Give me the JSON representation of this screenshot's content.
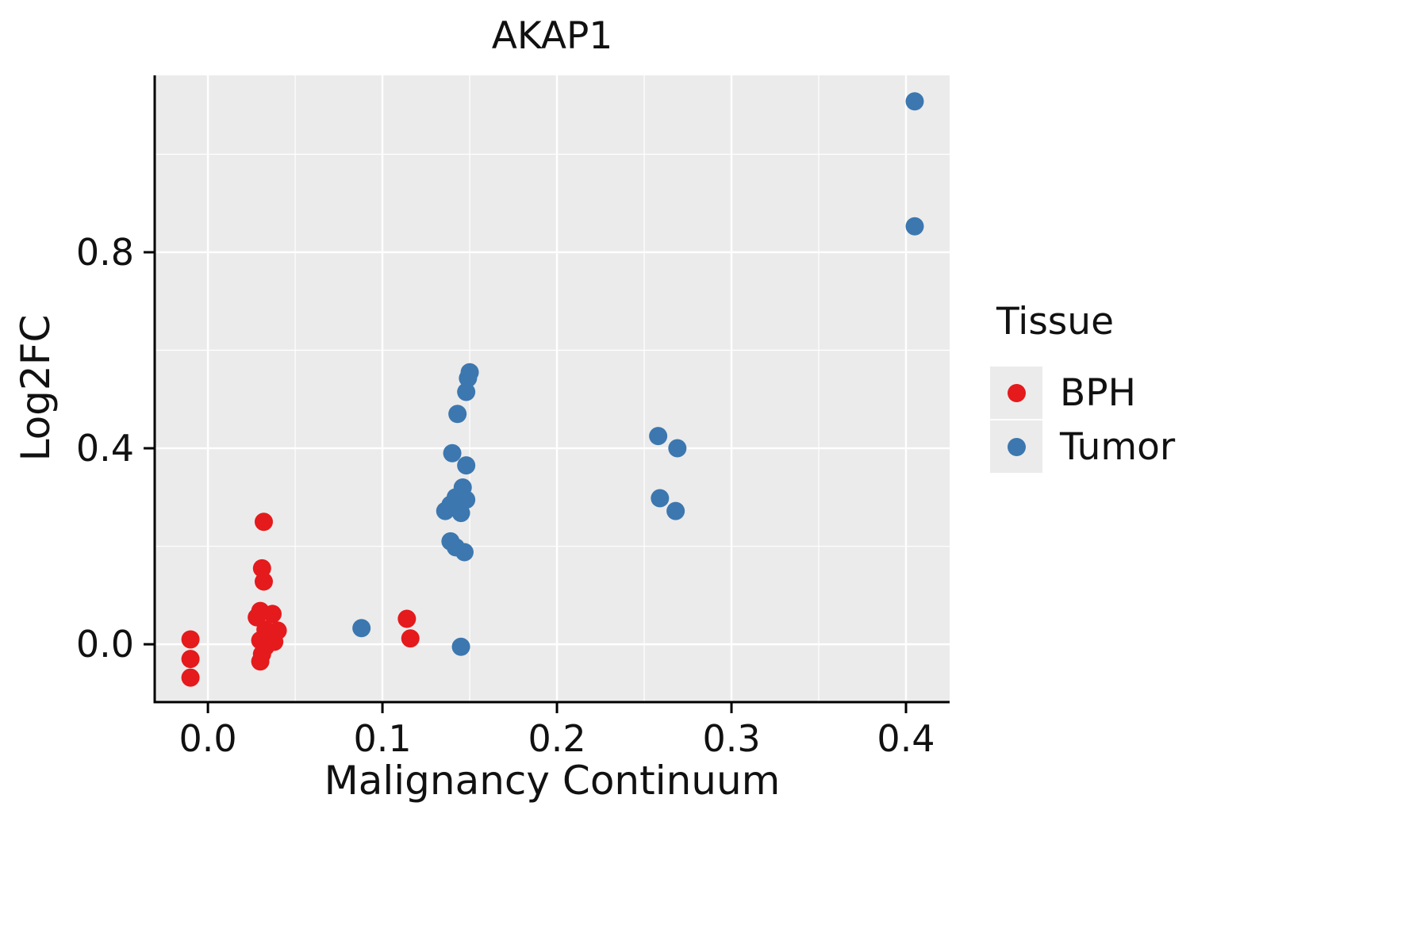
{
  "title": "AKAP1",
  "chart_data": {
    "type": "scatter",
    "title": "AKAP1",
    "xlabel": "Malignancy Continuum",
    "ylabel": "Log2FC",
    "xlim": [
      -0.0305,
      0.425
    ],
    "ylim": [
      -0.118,
      1.161
    ],
    "x_ticks": [
      0.0,
      0.1,
      0.2,
      0.3,
      0.4
    ],
    "y_ticks": [
      0.0,
      0.4,
      0.8
    ],
    "x_minor_ticks": [
      0.05,
      0.15,
      0.25,
      0.35
    ],
    "y_minor_ticks": [
      0.2,
      0.6,
      1.0
    ],
    "grid": "on",
    "panel_background": "#EBEBEB",
    "gridline_color": "#FFFFFF",
    "legend_title": "Tissue",
    "legend_position": "right",
    "series": [
      {
        "name": "BPH",
        "color": "#E41A1C",
        "points": [
          [
            -0.01,
            0.01
          ],
          [
            -0.01,
            -0.03
          ],
          [
            -0.01,
            -0.068
          ],
          [
            0.032,
            0.25
          ],
          [
            0.031,
            0.155
          ],
          [
            0.032,
            0.128
          ],
          [
            0.03,
            0.068
          ],
          [
            0.037,
            0.062
          ],
          [
            0.028,
            0.055
          ],
          [
            0.033,
            0.03
          ],
          [
            0.04,
            0.028
          ],
          [
            0.03,
            0.008
          ],
          [
            0.038,
            0.005
          ],
          [
            0.033,
            -0.005
          ],
          [
            0.031,
            -0.02
          ],
          [
            0.03,
            -0.035
          ],
          [
            0.114,
            0.052
          ],
          [
            0.116,
            0.012
          ]
        ]
      },
      {
        "name": "Tumor",
        "color": "#3C77B0",
        "points": [
          [
            0.088,
            0.033
          ],
          [
            0.15,
            0.555
          ],
          [
            0.149,
            0.543
          ],
          [
            0.148,
            0.515
          ],
          [
            0.143,
            0.47
          ],
          [
            0.14,
            0.39
          ],
          [
            0.148,
            0.365
          ],
          [
            0.146,
            0.32
          ],
          [
            0.142,
            0.3
          ],
          [
            0.148,
            0.295
          ],
          [
            0.139,
            0.285
          ],
          [
            0.136,
            0.272
          ],
          [
            0.145,
            0.268
          ],
          [
            0.139,
            0.21
          ],
          [
            0.142,
            0.198
          ],
          [
            0.147,
            0.188
          ],
          [
            0.145,
            -0.005
          ],
          [
            0.258,
            0.425
          ],
          [
            0.269,
            0.4
          ],
          [
            0.259,
            0.298
          ],
          [
            0.268,
            0.272
          ],
          [
            0.405,
            1.108
          ],
          [
            0.405,
            0.853
          ]
        ]
      }
    ]
  },
  "legend": {
    "title": "Tissue",
    "items": [
      {
        "label": "BPH",
        "color": "#E41A1C"
      },
      {
        "label": "Tumor",
        "color": "#3C77B0"
      }
    ]
  }
}
